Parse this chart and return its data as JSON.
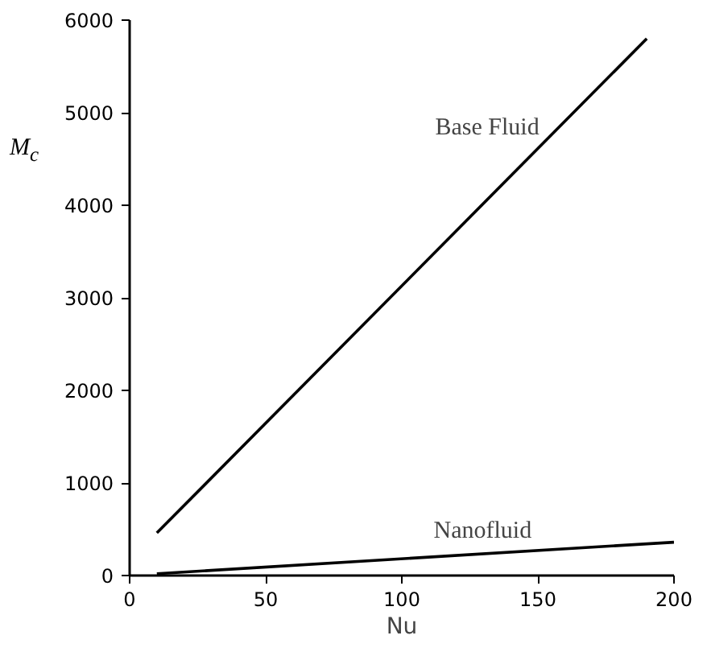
{
  "chart_data": {
    "type": "line",
    "xlabel": "Nu",
    "ylabel": "M$_{c}$",
    "series": [
      {
        "name": "Base Fluid",
        "color": "#000000",
        "x": [
          10,
          190
        ],
        "values": [
          460,
          5800
        ]
      },
      {
        "name": "Nanofluid",
        "color": "#000000",
        "x": [
          10,
          200
        ],
        "values": [
          20,
          360
        ]
      }
    ],
    "xlim": [
      0,
      200
    ],
    "ylim": [
      0,
      6000
    ],
    "xticks": [
      0,
      50,
      100,
      150,
      200
    ],
    "yticks": [
      0,
      1000,
      2000,
      3000,
      4000,
      5000,
      6000
    ],
    "grid": false,
    "marker": "none",
    "line_style": "solid"
  }
}
